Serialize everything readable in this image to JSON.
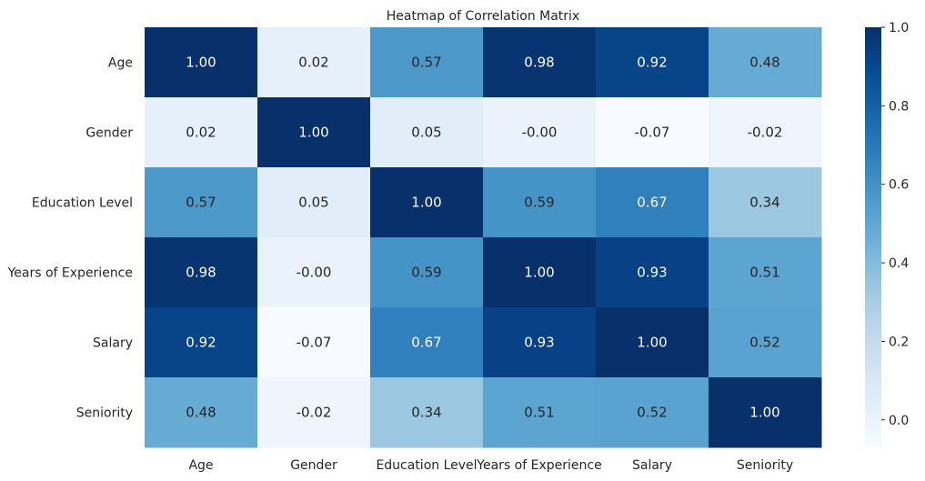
{
  "chart_data": {
    "type": "heatmap",
    "title": "Heatmap of Correlation Matrix",
    "x_categories": [
      "Age",
      "Gender",
      "Education Level",
      "Years of Experience",
      "Salary",
      "Seniority"
    ],
    "y_categories": [
      "Age",
      "Gender",
      "Education Level",
      "Years of Experience",
      "Salary",
      "Seniority"
    ],
    "values": [
      [
        1.0,
        0.02,
        0.57,
        0.98,
        0.92,
        0.48
      ],
      [
        0.02,
        1.0,
        0.05,
        -0.0,
        -0.07,
        -0.02
      ],
      [
        0.57,
        0.05,
        1.0,
        0.59,
        0.67,
        0.34
      ],
      [
        0.98,
        -0.0,
        0.59,
        1.0,
        0.93,
        0.51
      ],
      [
        0.92,
        -0.07,
        0.67,
        0.93,
        1.0,
        0.52
      ],
      [
        0.48,
        -0.02,
        0.34,
        0.51,
        0.52,
        1.0
      ]
    ],
    "value_format": "0.00",
    "colormap": "Blues",
    "color_range": [
      -0.07,
      1.0
    ],
    "colorbar_ticks": [
      "0.0",
      "0.2",
      "0.4",
      "0.6",
      "0.8",
      "1.0"
    ],
    "colorbar_tick_values": [
      0.0,
      0.2,
      0.4,
      0.6,
      0.8,
      1.0
    ]
  }
}
